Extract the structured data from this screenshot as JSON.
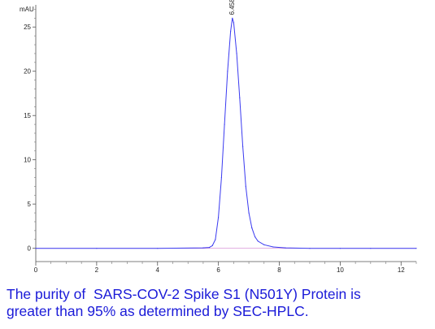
{
  "chart_data": {
    "type": "line",
    "y_unit": "mAU",
    "xlim": [
      0,
      12.5
    ],
    "ylim": [
      -1.5,
      27.5
    ],
    "x_ticks": [
      0,
      2,
      4,
      6,
      8,
      10,
      12
    ],
    "y_ticks": [
      0,
      5,
      10,
      15,
      20,
      25
    ],
    "y_tick_labels": [
      "0",
      "5",
      "10",
      "15",
      "20",
      "25"
    ],
    "peak_label": "6.458",
    "grid": false,
    "series": [
      {
        "color": "#3a3af0",
        "x": [
          0,
          2,
          4,
          5.5,
          5.7,
          5.8,
          5.9,
          6.0,
          6.1,
          6.2,
          6.3,
          6.4,
          6.458,
          6.5,
          6.6,
          6.7,
          6.8,
          6.9,
          7.0,
          7.1,
          7.2,
          7.3,
          7.5,
          7.8,
          8.2,
          9,
          10,
          11,
          12.5
        ],
        "y": [
          0,
          0,
          0,
          0.05,
          0.1,
          0.3,
          1.0,
          3.5,
          8.0,
          14.0,
          20.0,
          24.5,
          26.0,
          25.5,
          22.0,
          17.0,
          11.5,
          7.0,
          4.0,
          2.3,
          1.3,
          0.8,
          0.4,
          0.15,
          0.05,
          0,
          0,
          0,
          0
        ]
      }
    ]
  },
  "caption": {
    "line1": "The purity of  SARS-COV-2 Spike S1 (N501Y) Protein is",
    "line2": "greater than 95% as determined by SEC-HPLC."
  }
}
